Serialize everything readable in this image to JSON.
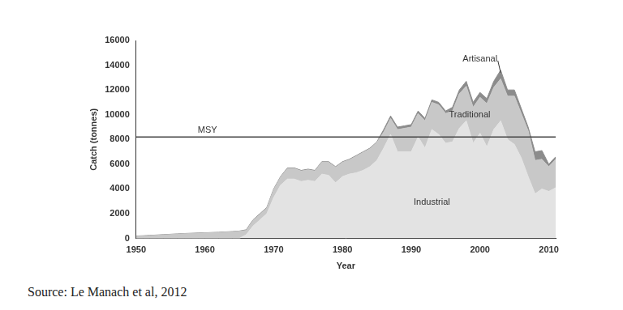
{
  "chart_data": {
    "type": "area",
    "stacked": true,
    "grid": false,
    "x_label": "Year",
    "y_label": "Catch (tonnes)",
    "caption": "Source: Le Manach et al, 2012",
    "xlim": [
      1950,
      2011
    ],
    "xticks": [
      1950,
      1960,
      1970,
      1980,
      1990,
      2000,
      2010
    ],
    "ylim": [
      0,
      16000
    ],
    "yticks": [
      0,
      2000,
      4000,
      6000,
      8000,
      10000,
      12000,
      14000,
      16000
    ],
    "x": [
      1950,
      1951,
      1952,
      1953,
      1954,
      1955,
      1956,
      1957,
      1958,
      1959,
      1960,
      1961,
      1962,
      1963,
      1964,
      1965,
      1966,
      1967,
      1968,
      1969,
      1970,
      1971,
      1972,
      1973,
      1974,
      1975,
      1976,
      1977,
      1978,
      1979,
      1980,
      1981,
      1982,
      1983,
      1984,
      1985,
      1986,
      1987,
      1988,
      1989,
      1990,
      1991,
      1992,
      1993,
      1994,
      1995,
      1996,
      1997,
      1998,
      1999,
      2000,
      2001,
      2002,
      2003,
      2004,
      2005,
      2006,
      2007,
      2008,
      2009,
      2010,
      2011
    ],
    "series": [
      {
        "name": "Industrial",
        "color": "#e3e3e3",
        "values": [
          0,
          0,
          0,
          0,
          0,
          0,
          0,
          0,
          0,
          0,
          0,
          0,
          0,
          0,
          0,
          0,
          300,
          1000,
          1500,
          2000,
          3300,
          4300,
          4800,
          4800,
          4600,
          4700,
          4600,
          5200,
          5100,
          4500,
          5000,
          5200,
          5300,
          5500,
          5800,
          6300,
          7300,
          8400,
          7000,
          7000,
          7000,
          8200,
          7300,
          8800,
          8400,
          7700,
          7800,
          8900,
          9500,
          7700,
          8500,
          7400,
          8800,
          9500,
          8000,
          7600,
          6500,
          5000,
          3600,
          4000,
          3800,
          4100
        ]
      },
      {
        "name": "Traditional",
        "color": "#c8c8c8",
        "values": [
          180,
          200,
          230,
          260,
          290,
          320,
          350,
          380,
          400,
          420,
          440,
          460,
          480,
          510,
          540,
          580,
          350,
          450,
          450,
          450,
          650,
          650,
          850,
          850,
          850,
          850,
          850,
          950,
          1050,
          1250,
          1150,
          1150,
          1350,
          1450,
          1450,
          1450,
          1300,
          1300,
          1800,
          1900,
          2000,
          1900,
          2200,
          2200,
          2400,
          2400,
          2500,
          2800,
          2800,
          2900,
          2900,
          3500,
          3400,
          3400,
          3500,
          3900,
          3600,
          3700,
          2700,
          2400,
          2000,
          2300
        ]
      },
      {
        "name": "Artisanal",
        "color": "#8c8c8c",
        "values": [
          20,
          20,
          20,
          20,
          20,
          20,
          20,
          20,
          20,
          20,
          20,
          20,
          20,
          20,
          20,
          20,
          50,
          50,
          50,
          50,
          50,
          50,
          50,
          50,
          50,
          50,
          50,
          50,
          50,
          50,
          50,
          50,
          50,
          50,
          50,
          50,
          200,
          200,
          200,
          200,
          200,
          200,
          200,
          200,
          200,
          200,
          300,
          300,
          400,
          400,
          400,
          400,
          500,
          700,
          500,
          500,
          400,
          300,
          700,
          700,
          200,
          200
        ]
      }
    ],
    "reference_lines": [
      {
        "label": "MSY",
        "value": 8200,
        "color": "#444444"
      }
    ]
  }
}
